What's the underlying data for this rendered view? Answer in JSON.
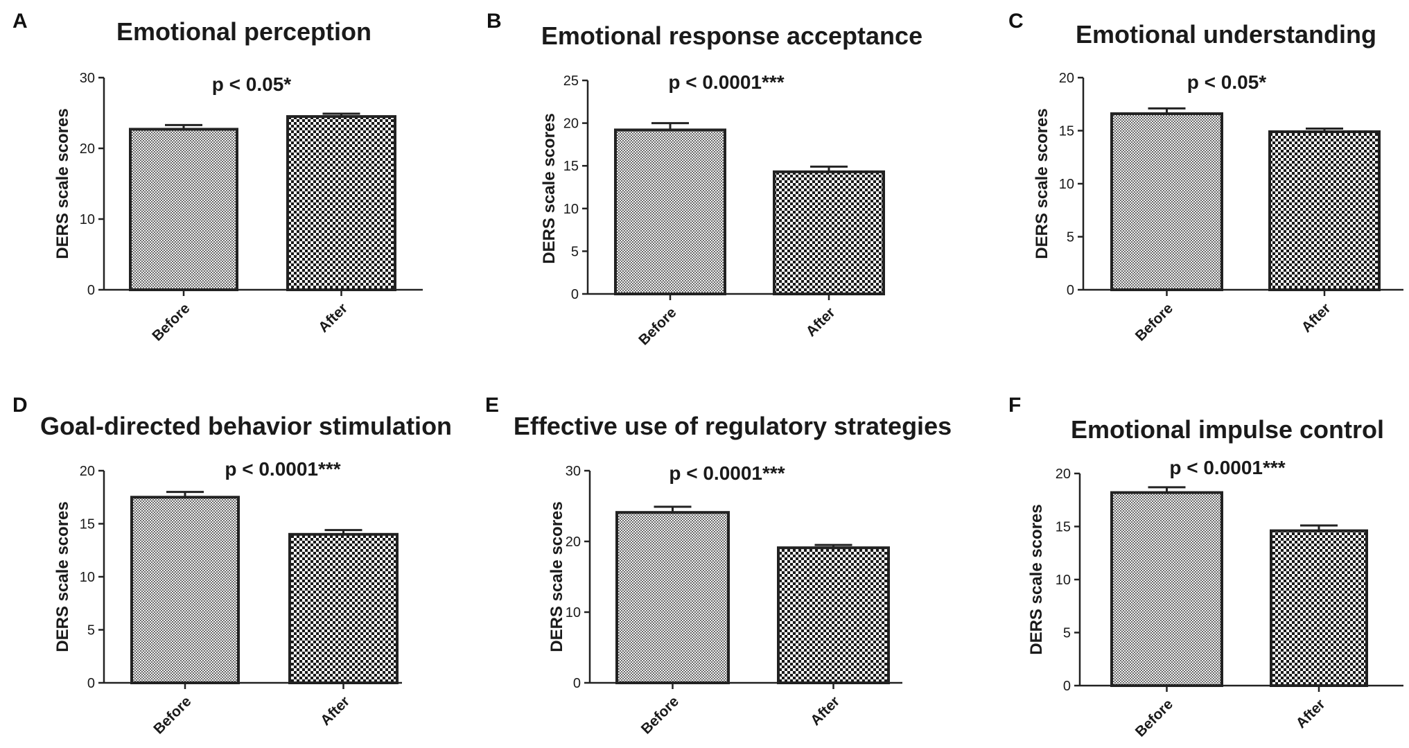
{
  "chart_data": [
    {
      "type": "bar",
      "panel": "A",
      "title": "Emotional perception",
      "ylabel": "DERS scale scores",
      "xlabel": "",
      "categories": [
        "Before",
        "After"
      ],
      "values": [
        22.7,
        24.5
      ],
      "errors": [
        0.6,
        0.4
      ],
      "ylim": [
        0,
        30
      ],
      "yticks": [
        0,
        10,
        20,
        30
      ],
      "annotation": "p < 0.05*",
      "pattern_colors": [
        "#6b6b6b",
        "#1a1a1a"
      ]
    },
    {
      "type": "bar",
      "panel": "B",
      "title": "Emotional response acceptance",
      "ylabel": "DERS scale scores",
      "xlabel": "",
      "categories": [
        "Before",
        "After"
      ],
      "values": [
        19.2,
        14.3
      ],
      "errors": [
        0.8,
        0.6
      ],
      "ylim": [
        0,
        25
      ],
      "yticks": [
        0,
        5,
        10,
        15,
        20,
        25
      ],
      "annotation": "p < 0.0001***",
      "pattern_colors": [
        "#6b6b6b",
        "#1a1a1a"
      ]
    },
    {
      "type": "bar",
      "panel": "C",
      "title": "Emotional understanding",
      "ylabel": "DERS scale scores",
      "xlabel": "",
      "categories": [
        "Before",
        "After"
      ],
      "values": [
        16.6,
        14.9
      ],
      "errors": [
        0.5,
        0.3
      ],
      "ylim": [
        0,
        20
      ],
      "yticks": [
        0,
        5,
        10,
        15,
        20
      ],
      "annotation": "p < 0.05*",
      "pattern_colors": [
        "#6b6b6b",
        "#1a1a1a"
      ]
    },
    {
      "type": "bar",
      "panel": "D",
      "title": "Goal-directed behavior stimulation",
      "ylabel": "DERS scale scores",
      "xlabel": "",
      "categories": [
        "Before",
        "After"
      ],
      "values": [
        17.5,
        14.0
      ],
      "errors": [
        0.5,
        0.4
      ],
      "ylim": [
        0,
        20
      ],
      "yticks": [
        0,
        5,
        10,
        15,
        20
      ],
      "annotation": "p < 0.0001***",
      "pattern_colors": [
        "#6b6b6b",
        "#1a1a1a"
      ]
    },
    {
      "type": "bar",
      "panel": "E",
      "title": "Effective use of regulatory strategies",
      "ylabel": "DERS scale scores",
      "xlabel": "",
      "categories": [
        "Before",
        "After"
      ],
      "values": [
        24.1,
        19.1
      ],
      "errors": [
        0.8,
        0.4
      ],
      "ylim": [
        0,
        30
      ],
      "yticks": [
        0,
        10,
        20,
        30
      ],
      "annotation": "p < 0.0001***",
      "pattern_colors": [
        "#6b6b6b",
        "#1a1a1a"
      ]
    },
    {
      "type": "bar",
      "panel": "F",
      "title": "Emotional impulse control",
      "ylabel": "DERS scale scores",
      "xlabel": "",
      "categories": [
        "Before",
        "After"
      ],
      "values": [
        18.2,
        14.6
      ],
      "errors": [
        0.5,
        0.5
      ],
      "ylim": [
        0,
        20
      ],
      "yticks": [
        0,
        5,
        10,
        15,
        20
      ],
      "annotation": "p < 0.0001***",
      "pattern_colors": [
        "#6b6b6b",
        "#1a1a1a"
      ]
    }
  ]
}
